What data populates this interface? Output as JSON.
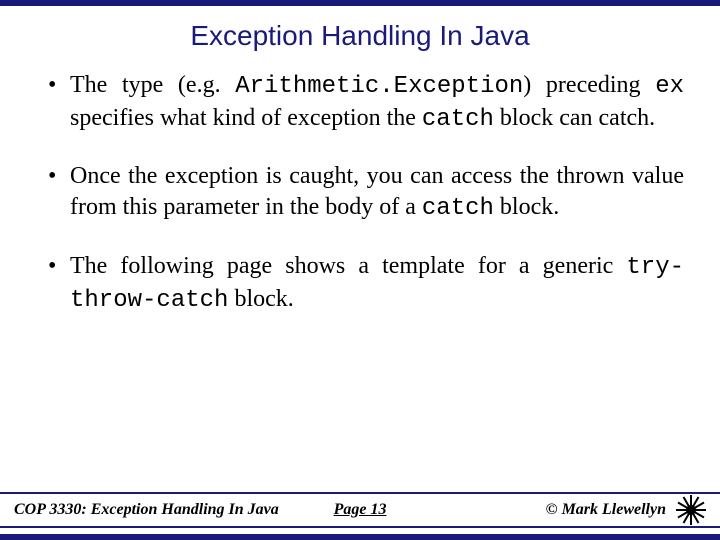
{
  "slide": {
    "title": "Exception Handling In Java",
    "title_color": "#1a1a7a",
    "title_fontsize": 28,
    "bar_color": "#1a1a7a",
    "background": "#ffffff",
    "body_fontsize": 24,
    "body_color": "#000000"
  },
  "bullets": {
    "b1_pre": "The type (e.g. ",
    "b1_code1": "Arithmetic.Exception",
    "b1_mid1": ") preceding ",
    "b1_code2": "ex",
    "b1_mid2": " specifies what kind of exception the ",
    "b1_code3": "catch",
    "b1_post": " block can catch.",
    "b2_pre": "Once the exception is caught, you can access the thrown value from this parameter in the body of a ",
    "b2_code1": "catch",
    "b2_post": " block.",
    "b3_pre": "The following page shows a template for a generic ",
    "b3_code1": "try-throw-catch",
    "b3_post": " block."
  },
  "footer": {
    "left": "COP 3330:  Exception Handling In Java",
    "center": "Page 13",
    "right": "© Mark Llewellyn",
    "logo_bg": "#d4af37",
    "logo_fg": "#000000"
  }
}
